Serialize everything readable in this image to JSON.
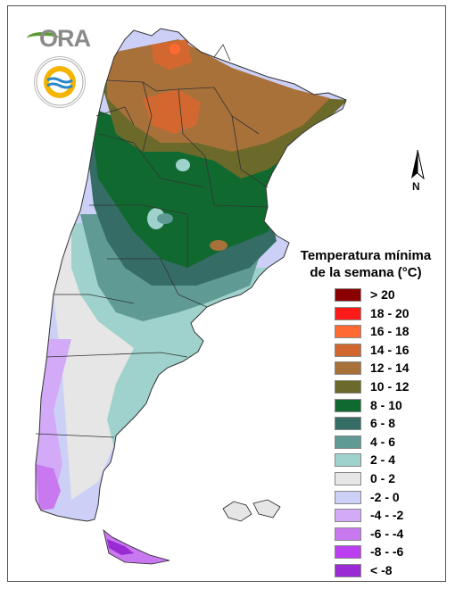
{
  "legend": {
    "title_line1": "Temperatura mínima",
    "title_line2": "de la semana (°C)",
    "items": [
      {
        "label": "> 20",
        "color": "#8b0000"
      },
      {
        "label": "18 - 20",
        "color": "#ff1a1a"
      },
      {
        "label": "16 - 18",
        "color": "#ff6a33"
      },
      {
        "label": "14 - 16",
        "color": "#d2682f"
      },
      {
        "label": "12 - 14",
        "color": "#a8713a"
      },
      {
        "label": "10 - 12",
        "color": "#6b6a2a"
      },
      {
        "label": "8 - 10",
        "color": "#106a30"
      },
      {
        "label": "6 - 8",
        "color": "#356c66"
      },
      {
        "label": "4 - 6",
        "color": "#5f9b94"
      },
      {
        "label": "2 - 4",
        "color": "#9fd2cc"
      },
      {
        "label": "0 - 2",
        "color": "#e6e6e6"
      },
      {
        "label": "-2 - 0",
        "color": "#ccd0f7"
      },
      {
        "label": "-4 - -2",
        "color": "#d2aaf7"
      },
      {
        "label": "-6 - -4",
        "color": "#c879f0"
      },
      {
        "label": "-8 - -6",
        "color": "#bb3ef0"
      },
      {
        "label": "< -8",
        "color": "#9a2bd4"
      }
    ]
  },
  "north_arrow": {
    "label": "N"
  },
  "logo": {
    "brand": "ORA"
  }
}
